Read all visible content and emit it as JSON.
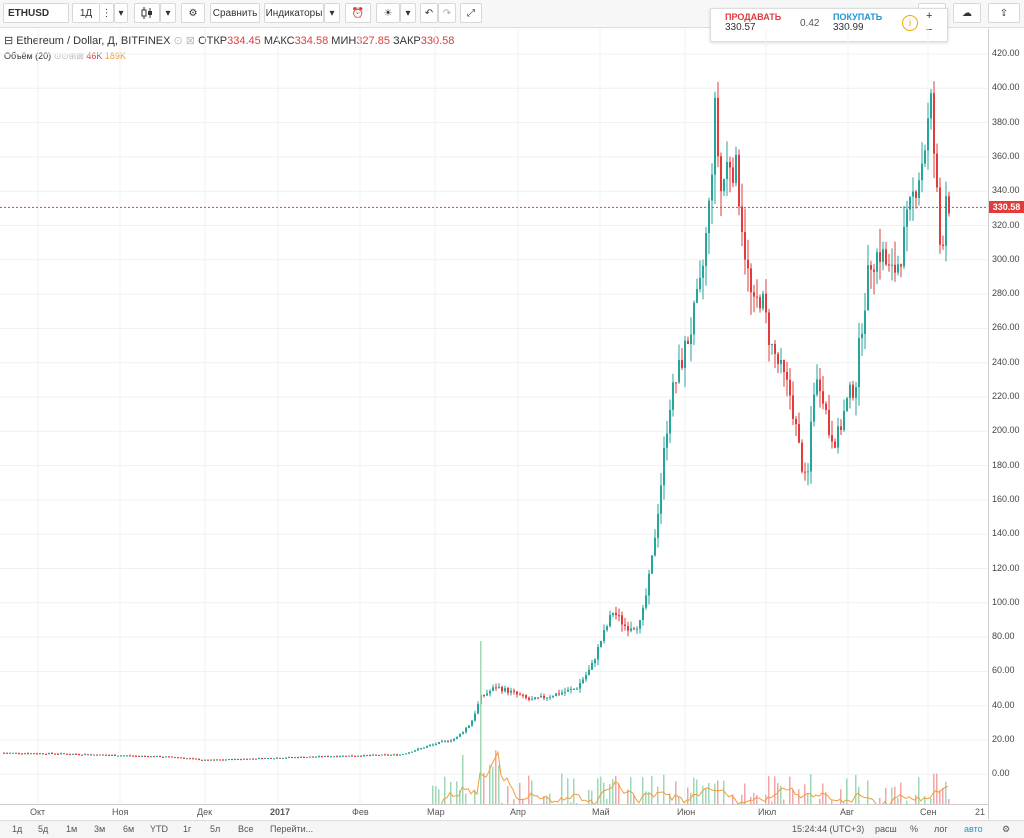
{
  "toolbar": {
    "symbol": "ETHUSD",
    "interval": "1Д",
    "compare_label": "Сравнить",
    "indicators_label": "Индикаторы"
  },
  "legend": {
    "title": "Ethereum / Dollar, Д, BITFINEX",
    "open_label": "ОТКР",
    "open_value": "334.45",
    "high_label": "МАКС",
    "high_value": "334.58",
    "low_label": "МИН",
    "low_value": "327.85",
    "close_label": "ЗАКР",
    "close_value": "330.58",
    "volume_label": "Объём (20)",
    "volume_value": "46K",
    "volume_ma": "189K"
  },
  "trade_panel": {
    "sell_label": "ПРОДАВАТЬ",
    "sell_price": "330.57",
    "spread": "0.42",
    "buy_label": "ПОКУПАТЬ",
    "buy_price": "330.99",
    "plus": "+",
    "minus": "−"
  },
  "last_price_badge": "330.58",
  "price_ticks": [
    "420.00",
    "400.00",
    "380.00",
    "360.00",
    "340.00",
    "320.00",
    "300.00",
    "280.00",
    "260.00",
    "240.00",
    "220.00",
    "200.00",
    "180.00",
    "160.00",
    "140.00",
    "120.00",
    "100.00",
    "80.00",
    "60.00",
    "40.00",
    "20.00",
    "0.00"
  ],
  "time_ticks": [
    "Окт",
    "Ноя",
    "Дек",
    "2017",
    "Фев",
    "Мар",
    "Апр",
    "Май",
    "Июн",
    "Июл",
    "Авг",
    "Сен",
    "21"
  ],
  "bottom": {
    "periods": [
      "1д",
      "5д",
      "1м",
      "3м",
      "6м",
      "YTD",
      "1г",
      "5л",
      "Все",
      "Перейти..."
    ],
    "clock": "15:24:44 (UTC+3)",
    "session": "расш",
    "percent": "%",
    "log": "лог",
    "auto": "авто"
  },
  "colors": {
    "up": "#26a69a",
    "down": "#e23b3b",
    "ma": "#f39c39",
    "grid": "#eef1f4"
  },
  "chart_data": {
    "type": "candlestick",
    "title": "Ethereum / Dollar, Д, BITFINEX",
    "x": [
      "Окт",
      "Ноя",
      "Дек",
      "2017",
      "Фев",
      "Мар",
      "Апр",
      "Май",
      "Июн",
      "Июл",
      "Авг",
      "Сен"
    ],
    "close": [
      12.5,
      10.8,
      8.0,
      8.2,
      10.7,
      17.2,
      49,
      80,
      345,
      210,
      300,
      330.58
    ],
    "ylim": [
      0,
      430
    ],
    "last": 330.58
  }
}
